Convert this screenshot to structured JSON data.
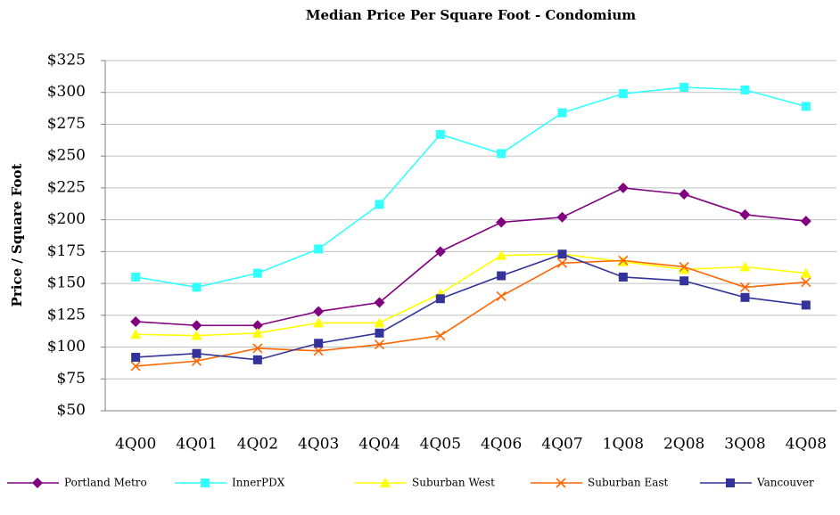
{
  "chart_data": {
    "type": "line",
    "title": "Median Price Per Square Foot - Condomium",
    "y_label": "Price / Square Foot",
    "categories": [
      "4Q00",
      "4Q01",
      "4Q02",
      "4Q03",
      "4Q04",
      "4Q05",
      "4Q06",
      "4Q07",
      "1Q08",
      "2Q08",
      "3Q08",
      "4Q08"
    ],
    "ylim": [
      50,
      325
    ],
    "yticks": [
      {
        "value": 50,
        "label": "$50"
      },
      {
        "value": 75,
        "label": "$75"
      },
      {
        "value": 100,
        "label": "$100"
      },
      {
        "value": 125,
        "label": "$125"
      },
      {
        "value": 150,
        "label": "$150"
      },
      {
        "value": 175,
        "label": "$175"
      },
      {
        "value": 200,
        "label": "$200"
      },
      {
        "value": 225,
        "label": "$225"
      },
      {
        "value": 250,
        "label": "$250"
      },
      {
        "value": 275,
        "label": "$275"
      },
      {
        "value": 300,
        "label": "$300"
      },
      {
        "value": 325,
        "label": "$325"
      }
    ],
    "grid": true,
    "legend": "bottom",
    "series": [
      {
        "name": "Portland Metro",
        "color": "#800080",
        "marker": "diamond",
        "values": [
          120,
          117,
          117,
          128,
          135,
          175,
          198,
          202,
          225,
          220,
          204,
          199
        ]
      },
      {
        "name": "InnerPDX",
        "color": "#33ffff",
        "marker": "square",
        "values": [
          155,
          147,
          158,
          177,
          212,
          267,
          252,
          284,
          299,
          304,
          302,
          289
        ]
      },
      {
        "name": "Suburban West",
        "color": "#ffff00",
        "marker": "triangle",
        "values": [
          110,
          109,
          111,
          119,
          119,
          142,
          172,
          173,
          167,
          161,
          163,
          158
        ]
      },
      {
        "name": "Suburban East",
        "color": "#ff6600",
        "marker": "x",
        "values": [
          85,
          89,
          99,
          97,
          102,
          109,
          140,
          166,
          168,
          163,
          147,
          151
        ]
      },
      {
        "name": "Vancouver",
        "color": "#333399",
        "marker": "square",
        "values": [
          92,
          95,
          90,
          103,
          111,
          138,
          156,
          173,
          155,
          152,
          139,
          133
        ]
      }
    ]
  }
}
